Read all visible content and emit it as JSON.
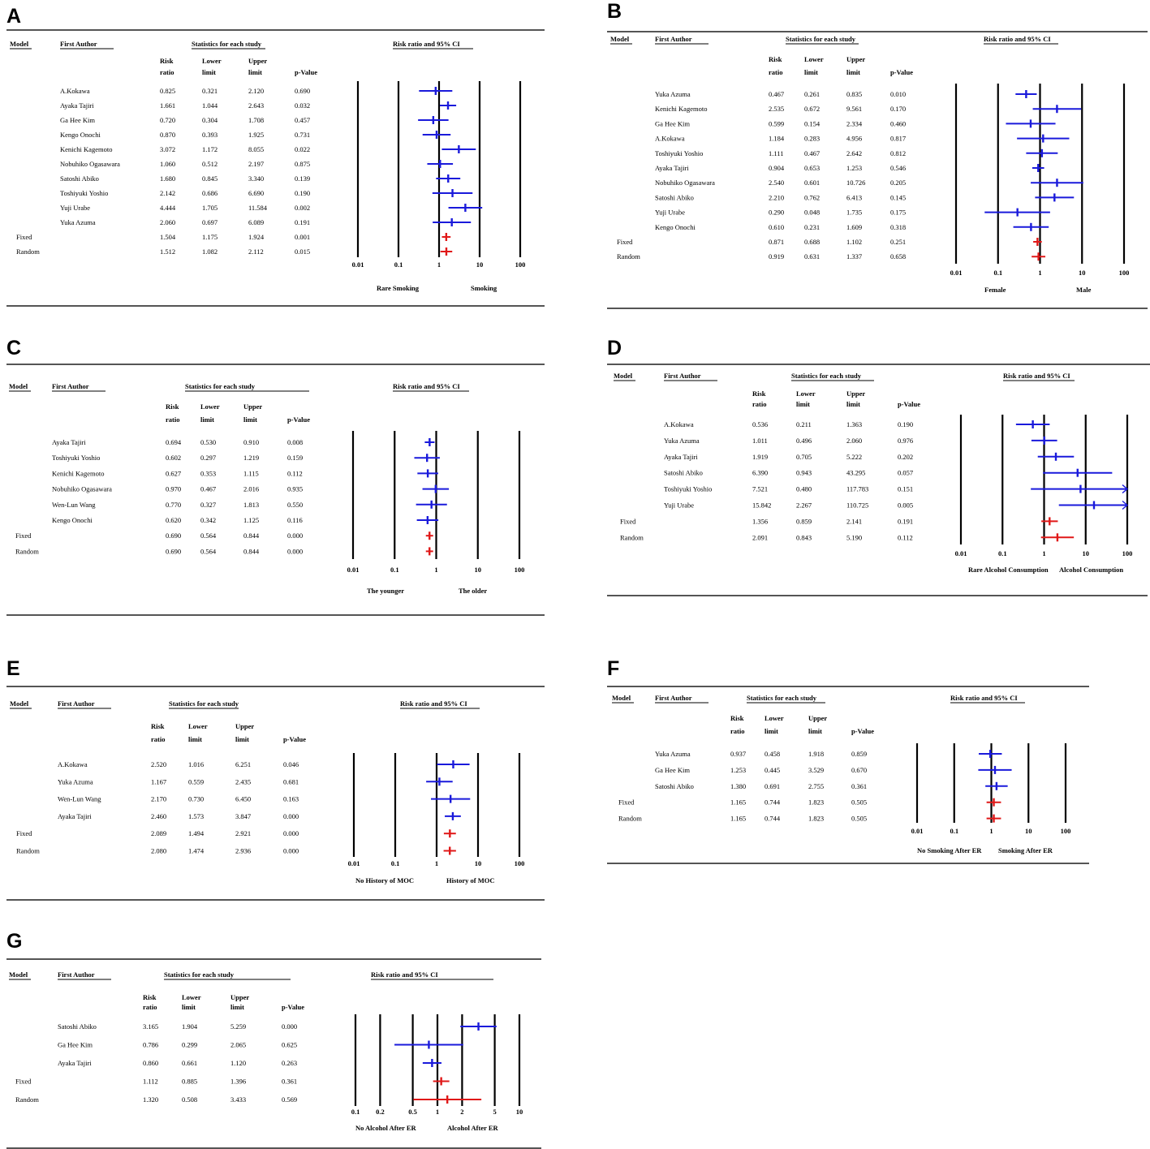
{
  "colors": {
    "study": "#1a1adb",
    "summary": "#e01818",
    "text": "#000000",
    "rule": "#555555"
  },
  "chart_data": [
    {
      "type": "forest",
      "panel": "A",
      "headers": {
        "model": "Model",
        "author": "First Author",
        "stats": "Statistics for each study",
        "plot": "Risk ratio and 95% CI",
        "rr": [
          "Risk",
          "ratio"
        ],
        "lower": [
          "Lower",
          "limit"
        ],
        "upper": [
          "Upper",
          "limit"
        ],
        "p": "p-Value"
      },
      "studies": [
        {
          "author": "A.Kokawa",
          "rr": "0.825",
          "lower": "0.321",
          "upper": "2.120",
          "p": "0.690"
        },
        {
          "author": "Ayaka Tajiri",
          "rr": "1.661",
          "lower": "1.044",
          "upper": "2.643",
          "p": "0.032"
        },
        {
          "author": "Ga Hee Kim",
          "rr": "0.720",
          "lower": "0.304",
          "upper": "1.708",
          "p": "0.457"
        },
        {
          "author": "Kengo Onochi",
          "rr": "0.870",
          "lower": "0.393",
          "upper": "1.925",
          "p": "0.731"
        },
        {
          "author": "Kenichi Kagemoto",
          "rr": "3.072",
          "lower": "1.172",
          "upper": "8.055",
          "p": "0.022"
        },
        {
          "author": "Nobuhiko Ogasawara",
          "rr": "1.060",
          "lower": "0.512",
          "upper": "2.197",
          "p": "0.875"
        },
        {
          "author": "Satoshi Abiko",
          "rr": "1.680",
          "lower": "0.845",
          "upper": "3.340",
          "p": "0.139"
        },
        {
          "author": "Toshiyuki Yoshio",
          "rr": "2.142",
          "lower": "0.686",
          "upper": "6.690",
          "p": "0.190"
        },
        {
          "author": "Yuji Urabe",
          "rr": "4.444",
          "lower": "1.705",
          "upper": "11.584",
          "p": "0.002"
        },
        {
          "author": "Yuka Azuma",
          "rr": "2.060",
          "lower": "0.697",
          "upper": "6.089",
          "p": "0.191"
        }
      ],
      "pooled": [
        {
          "model": "Fixed",
          "rr": "1.504",
          "lower": "1.175",
          "upper": "1.924",
          "p": "0.001"
        },
        {
          "model": "Random",
          "rr": "1.512",
          "lower": "1.082",
          "upper": "2.112",
          "p": "0.015"
        }
      ],
      "ticks": [
        "0.01",
        "0.1",
        "1",
        "10",
        "100"
      ],
      "gridlines": [
        "0.01",
        "0.1",
        "1",
        "10",
        "100"
      ],
      "xlabel_left": "Rare Smoking",
      "xlabel_right": "Smoking"
    },
    {
      "type": "forest",
      "panel": "B",
      "headers": {
        "model": "Model",
        "author": "First Author",
        "stats": "Statistics for each study",
        "plot": "Risk ratio and 95% CI",
        "rr": [
          "Risk",
          "ratio"
        ],
        "lower": [
          "Lower",
          "limit"
        ],
        "upper": [
          "Upper",
          "limit"
        ],
        "p": "p-Value"
      },
      "studies": [
        {
          "author": "Yuka Azuma",
          "rr": "0.467",
          "lower": "0.261",
          "upper": "0.835",
          "p": "0.010"
        },
        {
          "author": "Kenichi Kagemoto",
          "rr": "2.535",
          "lower": "0.672",
          "upper": "9.561",
          "p": "0.170"
        },
        {
          "author": "Ga Hee Kim",
          "rr": "0.599",
          "lower": "0.154",
          "upper": "2.334",
          "p": "0.460"
        },
        {
          "author": "A.Kokawa",
          "rr": "1.184",
          "lower": "0.283",
          "upper": "4.956",
          "p": "0.817"
        },
        {
          "author": "Toshiyuki Yoshio",
          "rr": "1.111",
          "lower": "0.467",
          "upper": "2.642",
          "p": "0.812"
        },
        {
          "author": "Ayaka Tajiri",
          "rr": "0.904",
          "lower": "0.653",
          "upper": "1.253",
          "p": "0.546"
        },
        {
          "author": "Nobuhiko Ogasawara",
          "rr": "2.540",
          "lower": "0.601",
          "upper": "10.726",
          "p": "0.205"
        },
        {
          "author": "Satoshi Abiko",
          "rr": "2.210",
          "lower": "0.762",
          "upper": "6.413",
          "p": "0.145"
        },
        {
          "author": "Yuji Urabe",
          "rr": "0.290",
          "lower": "0.048",
          "upper": "1.735",
          "p": "0.175"
        },
        {
          "author": "Kengo Onochi",
          "rr": "0.610",
          "lower": "0.231",
          "upper": "1.609",
          "p": "0.318"
        }
      ],
      "pooled": [
        {
          "model": "Fixed",
          "rr": "0.871",
          "lower": "0.688",
          "upper": "1.102",
          "p": "0.251"
        },
        {
          "model": "Random",
          "rr": "0.919",
          "lower": "0.631",
          "upper": "1.337",
          "p": "0.658"
        }
      ],
      "ticks": [
        "0.01",
        "0.1",
        "1",
        "10",
        "100"
      ],
      "gridlines": [
        "0.01",
        "0.1",
        "1",
        "10",
        "100"
      ],
      "xlabel_left": "Female",
      "xlabel_right": "Male"
    },
    {
      "type": "forest",
      "panel": "C",
      "headers": {
        "model": "Model",
        "author": "First Author",
        "stats": "Statistics for each study",
        "plot": "Risk ratio and 95% CI",
        "rr": [
          "Risk",
          "ratio"
        ],
        "lower": [
          "Lower",
          "limit"
        ],
        "upper": [
          "Upper",
          "limit"
        ],
        "p": "p-Value"
      },
      "studies": [
        {
          "author": "Ayaka Tajiri",
          "rr": "0.694",
          "lower": "0.530",
          "upper": "0.910",
          "p": "0.008"
        },
        {
          "author": "Toshiyuki Yoshio",
          "rr": "0.602",
          "lower": "0.297",
          "upper": "1.219",
          "p": "0.159"
        },
        {
          "author": "Kenichi Kagemoto",
          "rr": "0.627",
          "lower": "0.353",
          "upper": "1.115",
          "p": "0.112"
        },
        {
          "author": "Nobuhiko Ogasawara",
          "rr": "0.970",
          "lower": "0.467",
          "upper": "2.016",
          "p": "0.935"
        },
        {
          "author": "Wen-Lun Wang",
          "rr": "0.770",
          "lower": "0.327",
          "upper": "1.813",
          "p": "0.550"
        },
        {
          "author": "Kengo Onochi",
          "rr": "0.620",
          "lower": "0.342",
          "upper": "1.125",
          "p": "0.116"
        }
      ],
      "pooled": [
        {
          "model": "Fixed",
          "rr": "0.690",
          "lower": "0.564",
          "upper": "0.844",
          "p": "0.000"
        },
        {
          "model": "Random",
          "rr": "0.690",
          "lower": "0.564",
          "upper": "0.844",
          "p": "0.000"
        }
      ],
      "ticks": [
        "0.01",
        "0.1",
        "1",
        "10",
        "100"
      ],
      "gridlines": [
        "0.01",
        "0.1",
        "1",
        "10",
        "100"
      ],
      "xlabel_left": "The younger",
      "xlabel_right": "The older"
    },
    {
      "type": "forest",
      "panel": "D",
      "headers": {
        "model": "Model",
        "author": "First Author",
        "stats": "Statistics for each study",
        "plot": "Risk ratio and 95% CI",
        "rr": [
          "Risk",
          "ratio"
        ],
        "lower": [
          "Lower",
          "limit"
        ],
        "upper": [
          "Upper",
          "limit"
        ],
        "p": "p-Value"
      },
      "studies": [
        {
          "author": "A.Kokawa",
          "rr": "0.536",
          "lower": "0.211",
          "upper": "1.363",
          "p": "0.190"
        },
        {
          "author": "Yuka Azuma",
          "rr": "1.011",
          "lower": "0.496",
          "upper": "2.060",
          "p": "0.976"
        },
        {
          "author": "Ayaka Tajiri",
          "rr": "1.919",
          "lower": "0.705",
          "upper": "5.222",
          "p": "0.202"
        },
        {
          "author": "Satoshi Abiko",
          "rr": "6.390",
          "lower": "0.943",
          "upper": "43.295",
          "p": "0.057"
        },
        {
          "author": "Toshiyuki Yoshio",
          "rr": "7.521",
          "lower": "0.480",
          "upper": "117.783",
          "p": "0.151"
        },
        {
          "author": "Yuji Urabe",
          "rr": "15.842",
          "lower": "2.267",
          "upper": "110.725",
          "p": "0.005"
        }
      ],
      "pooled": [
        {
          "model": "Fixed",
          "rr": "1.356",
          "lower": "0.859",
          "upper": "2.141",
          "p": "0.191"
        },
        {
          "model": "Random",
          "rr": "2.091",
          "lower": "0.843",
          "upper": "5.190",
          "p": "0.112"
        }
      ],
      "ticks": [
        "0.01",
        "0.1",
        "1",
        "10",
        "100"
      ],
      "gridlines": [
        "0.01",
        "0.1",
        "1",
        "10",
        "100"
      ],
      "xlabel_left": "Rare Alcohol Consumption",
      "xlabel_right": "Alcohol Consumption"
    },
    {
      "type": "forest",
      "panel": "E",
      "headers": {
        "model": "Model",
        "author": "First Author",
        "stats": "Statistics for each study",
        "plot": "Risk ratio and 95% CI",
        "rr": [
          "Risk",
          "ratio"
        ],
        "lower": [
          "Lower",
          "limit"
        ],
        "upper": [
          "Upper",
          "limit"
        ],
        "p": "p-Value"
      },
      "studies": [
        {
          "author": "A.Kokawa",
          "rr": "2.520",
          "lower": "1.016",
          "upper": "6.251",
          "p": "0.046"
        },
        {
          "author": "Yuka Azuma",
          "rr": "1.167",
          "lower": "0.559",
          "upper": "2.435",
          "p": "0.681"
        },
        {
          "author": "Wen-Lun Wang",
          "rr": "2.170",
          "lower": "0.730",
          "upper": "6.450",
          "p": "0.163"
        },
        {
          "author": "Ayaka Tajiri",
          "rr": "2.460",
          "lower": "1.573",
          "upper": "3.847",
          "p": "0.000"
        }
      ],
      "pooled": [
        {
          "model": "Fixed",
          "rr": "2.089",
          "lower": "1.494",
          "upper": "2.921",
          "p": "0.000"
        },
        {
          "model": "Random",
          "rr": "2.080",
          "lower": "1.474",
          "upper": "2.936",
          "p": "0.000"
        }
      ],
      "ticks": [
        "0.01",
        "0.1",
        "1",
        "10",
        "100"
      ],
      "gridlines": [
        "0.01",
        "0.1",
        "1",
        "10",
        "100"
      ],
      "xlabel_left": "No History of MOC",
      "xlabel_right": "History of MOC"
    },
    {
      "type": "forest",
      "panel": "F",
      "headers": {
        "model": "Model",
        "author": "First Author",
        "stats": "Statistics for each study",
        "plot": "Risk ratio and 95% CI",
        "rr": [
          "Risk",
          "ratio"
        ],
        "lower": [
          "Lower",
          "limit"
        ],
        "upper": [
          "Upper",
          "limit"
        ],
        "p": "p-Value"
      },
      "studies": [
        {
          "author": "Yuka Azuma",
          "rr": "0.937",
          "lower": "0.458",
          "upper": "1.918",
          "p": "0.859"
        },
        {
          "author": "Ga Hee Kim",
          "rr": "1.253",
          "lower": "0.445",
          "upper": "3.529",
          "p": "0.670"
        },
        {
          "author": "Satoshi Abiko",
          "rr": "1.380",
          "lower": "0.691",
          "upper": "2.755",
          "p": "0.361"
        }
      ],
      "pooled": [
        {
          "model": "Fixed",
          "rr": "1.165",
          "lower": "0.744",
          "upper": "1.823",
          "p": "0.505"
        },
        {
          "model": "Random",
          "rr": "1.165",
          "lower": "0.744",
          "upper": "1.823",
          "p": "0.505"
        }
      ],
      "ticks": [
        "0.01",
        "0.1",
        "1",
        "10",
        "100"
      ],
      "gridlines": [
        "0.01",
        "0.1",
        "1",
        "10",
        "100"
      ],
      "xlabel_left": "No Smoking After ER",
      "xlabel_right": "Smoking After ER"
    },
    {
      "type": "forest",
      "panel": "G",
      "headers": {
        "model": "Model",
        "author": "First Author",
        "stats": "Statistics for each study",
        "plot": "Risk ratio and 95% CI",
        "rr": [
          "Risk",
          "ratio"
        ],
        "lower": [
          "Lower",
          "limit"
        ],
        "upper": [
          "Upper",
          "limit"
        ],
        "p": "p-Value"
      },
      "studies": [
        {
          "author": "Satoshi Abiko",
          "rr": "3.165",
          "lower": "1.904",
          "upper": "5.259",
          "p": "0.000"
        },
        {
          "author": "Ga Hee Kim",
          "rr": "0.786",
          "lower": "0.299",
          "upper": "2.065",
          "p": "0.625"
        },
        {
          "author": "Ayaka Tajiri",
          "rr": "0.860",
          "lower": "0.661",
          "upper": "1.120",
          "p": "0.263"
        }
      ],
      "pooled": [
        {
          "model": "Fixed",
          "rr": "1.112",
          "lower": "0.885",
          "upper": "1.396",
          "p": "0.361"
        },
        {
          "model": "Random",
          "rr": "1.320",
          "lower": "0.508",
          "upper": "3.433",
          "p": "0.569"
        }
      ],
      "ticks": [
        "0.1",
        "0.2",
        "0.5",
        "1",
        "2",
        "5",
        "10"
      ],
      "gridlines": [
        "0.1",
        "0.2",
        "0.5",
        "1",
        "2",
        "5",
        "10"
      ],
      "xlabel_left": "No Alcohol After ER",
      "xlabel_right": "Alcohol After ER"
    }
  ]
}
